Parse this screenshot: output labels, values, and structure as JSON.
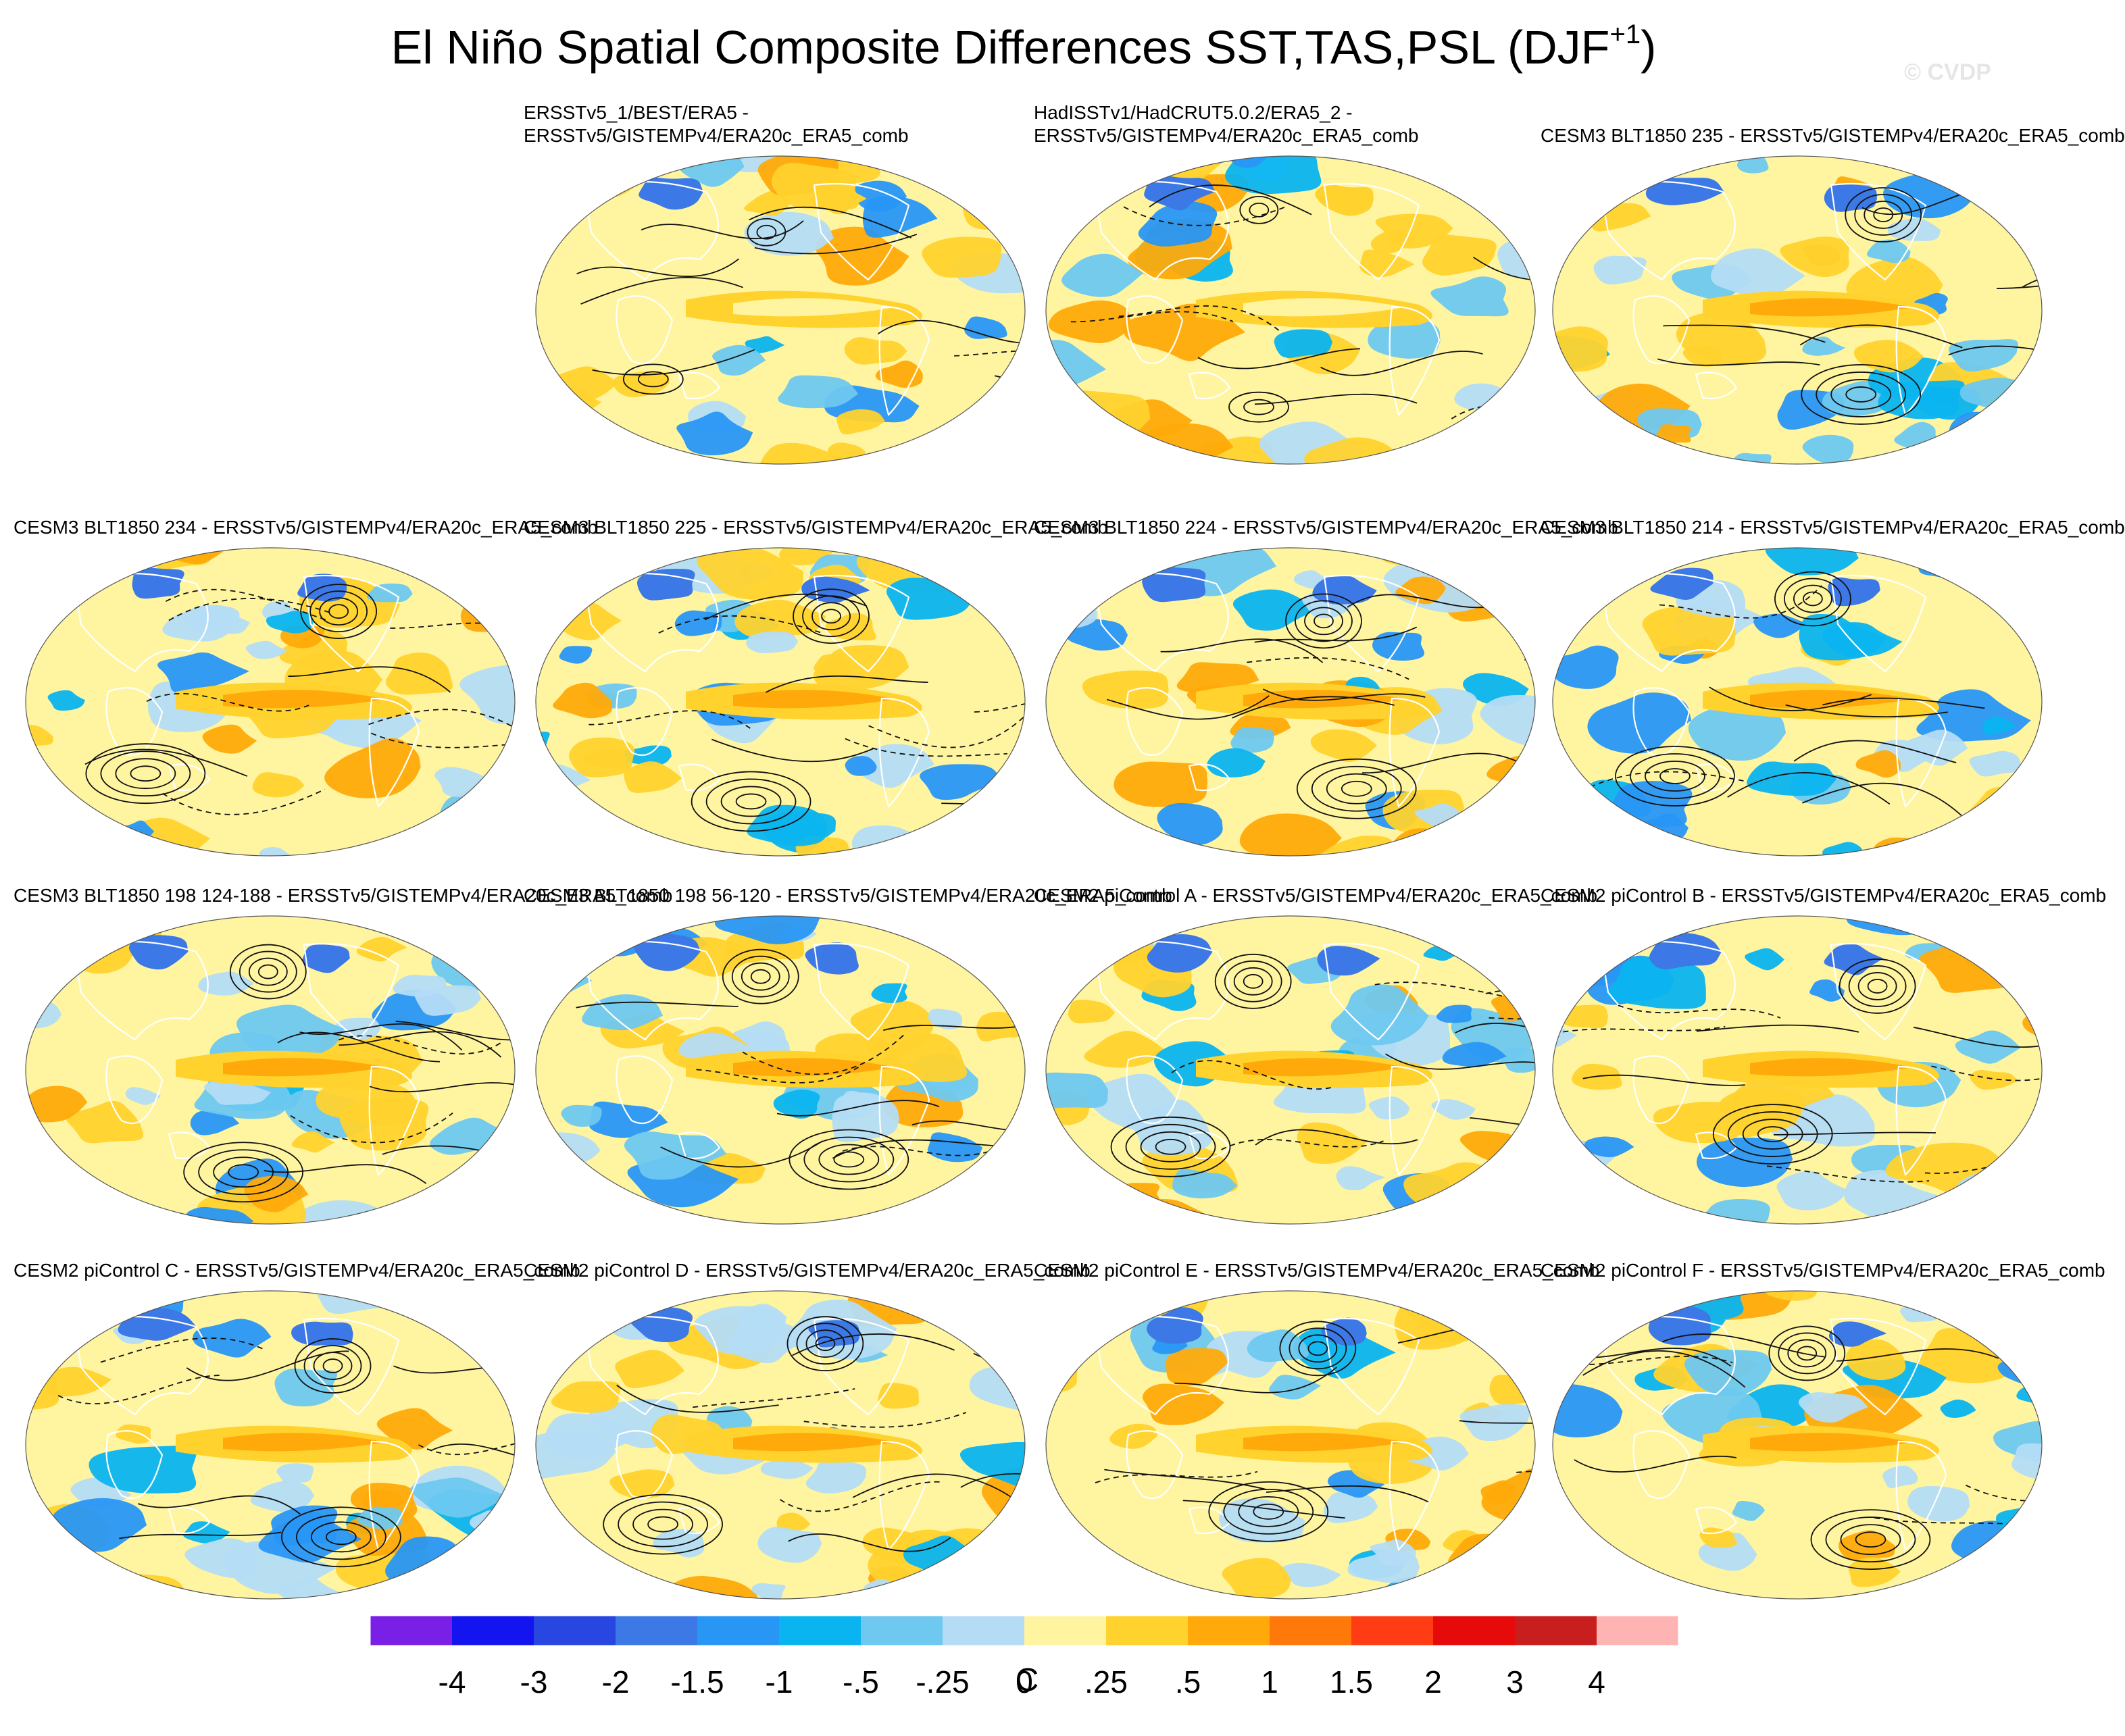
{
  "title": {
    "main": "El Niño Spatial Composite Differences SST,TAS,PSL (DJF",
    "superscript": "+1",
    "close": ")"
  },
  "watermark": "© CVDP",
  "panels": [
    {
      "title_lines": [
        "ERSSTv5_1/BEST/ERA5 -",
        "ERSSTv5/GISTEMPv4/ERA20c_ERA5_comb"
      ],
      "style": "obs"
    },
    {
      "title_lines": [
        "HadISSTv1/HadCRUT5.0.2/ERA5_2 -",
        "ERSSTv5/GISTEMPv4/ERA20c_ERA5_comb"
      ],
      "style": "obs"
    },
    {
      "title_lines": [
        "CESM3 BLT1850 235 - ERSSTv5/GISTEMPv4/ERA20c_ERA5_comb"
      ],
      "style": "model"
    },
    {
      "title_lines": [
        "CESM3 BLT1850 234 - ERSSTv5/GISTEMPv4/ERA20c_ERA5_comb"
      ],
      "style": "model"
    },
    {
      "title_lines": [
        "CESM3 BLT1850 225 - ERSSTv5/GISTEMPv4/ERA20c_ERA5_comb"
      ],
      "style": "model"
    },
    {
      "title_lines": [
        "CESM3 BLT1850 224 - ERSSTv5/GISTEMPv4/ERA20c_ERA5_comb"
      ],
      "style": "model"
    },
    {
      "title_lines": [
        "CESM3 BLT1850 214 - ERSSTv5/GISTEMPv4/ERA20c_ERA5_comb"
      ],
      "style": "model"
    },
    {
      "title_lines": [
        "CESM3 BLT1850 198 124-188 - ERSSTv5/GISTEMPv4/ERA20c_ERA5_comb"
      ],
      "style": "model"
    },
    {
      "title_lines": [
        "CESM3 BLT1850 198 56-120 - ERSSTv5/GISTEMPv4/ERA20c_ERA5_comb"
      ],
      "style": "model"
    },
    {
      "title_lines": [
        "CESM2 piControl A - ERSSTv5/GISTEMPv4/ERA20c_ERA5_comb"
      ],
      "style": "model"
    },
    {
      "title_lines": [
        "CESM2 piControl B - ERSSTv5/GISTEMPv4/ERA20c_ERA5_comb"
      ],
      "style": "model"
    },
    {
      "title_lines": [
        "CESM2 piControl C - ERSSTv5/GISTEMPv4/ERA20c_ERA5_comb"
      ],
      "style": "model"
    },
    {
      "title_lines": [
        "CESM2 piControl D - ERSSTv5/GISTEMPv4/ERA20c_ERA5_comb"
      ],
      "style": "model"
    },
    {
      "title_lines": [
        "CESM2 piControl E - ERSSTv5/GISTEMPv4/ERA20c_ERA5_comb"
      ],
      "style": "model"
    },
    {
      "title_lines": [
        "CESM2 piControl F - ERSSTv5/GISTEMPv4/ERA20c_ERA5_comb"
      ],
      "style": "model"
    }
  ],
  "colorbar": {
    "colors": [
      "#7a1fe6",
      "#1414f0",
      "#2846e0",
      "#3c78e6",
      "#2896f5",
      "#0ab4f0",
      "#6ec8f0",
      "#b4dcf5",
      "#fff5a0",
      "#ffd22d",
      "#ffaa0a",
      "#ff780a",
      "#ff3c14",
      "#e60a0a",
      "#c81e1e",
      "#ffb4b4"
    ],
    "labels": [
      "-4",
      "-3",
      "-2",
      "-1.5",
      "-1",
      "-.5",
      "-.25",
      "0",
      ".25",
      ".5",
      "1",
      "1.5",
      "2",
      "3",
      "4"
    ],
    "unit": "C"
  }
}
